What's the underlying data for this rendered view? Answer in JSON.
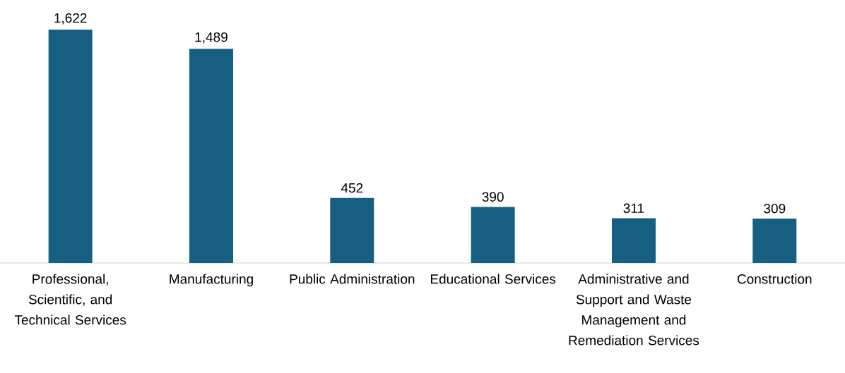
{
  "chart_data": {
    "type": "bar",
    "categories": [
      "Professional, Scientific, and Technical Services",
      "Manufacturing",
      "Public Administration",
      "Educational Services",
      "Administrative and Support and Waste Management and Remediation Services",
      "Construction"
    ],
    "values": [
      1622,
      1489,
      452,
      390,
      311,
      309
    ],
    "value_labels": [
      "1,622",
      "1,489",
      "452",
      "390",
      "311",
      "309"
    ],
    "color": "#175f80"
  }
}
